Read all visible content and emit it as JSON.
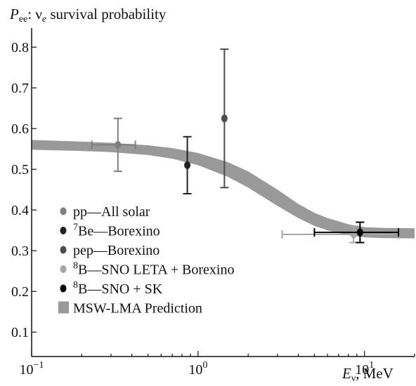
{
  "chart_data": {
    "type": "scatter",
    "title": "P_ee: ν_e survival probability",
    "title_parts": {
      "p": "P",
      "sub": "ee",
      "rest": ": ν",
      "sub2": "e",
      "tail": " survival probability"
    },
    "xlabel_parts": {
      "e": "E",
      "sub": "ν",
      "tail": ", MeV"
    },
    "x_scale": "log",
    "xlim": [
      0.1,
      20
    ],
    "ylim": [
      0.04,
      0.84
    ],
    "y_ticks": [
      0.1,
      0.2,
      0.3,
      0.4,
      0.5,
      0.6,
      0.7,
      0.8
    ],
    "y_tick_labels": [
      "0.1",
      "0.2",
      "0.3",
      "0.4",
      "0.5",
      "0.6",
      "0.7",
      "0.8"
    ],
    "x_ticks": [
      {
        "value": 0.1,
        "base": "10",
        "exp": "−1"
      },
      {
        "value": 1,
        "base": "10",
        "exp": "0"
      },
      {
        "value": 10,
        "base": "10",
        "exp": "1"
      }
    ],
    "series": [
      {
        "name": "pp—All solar",
        "name_sup": "",
        "name_text": "pp—All solar",
        "color": "#7f7f7f",
        "x": 0.33,
        "y": 0.56,
        "y_err": [
          0.495,
          0.625
        ],
        "x_err": [
          0.23,
          0.42
        ]
      },
      {
        "name": "7Be—Borexino",
        "name_sup": "7",
        "name_text": "Be—Borexino",
        "color": "#222222",
        "x": 0.862,
        "y": 0.51,
        "y_err": [
          0.44,
          0.58
        ],
        "x_err": null
      },
      {
        "name": "pep—Borexino",
        "name_sup": "",
        "name_text": "pep—Borexino",
        "color": "#4d4d4d",
        "x": 1.44,
        "y": 0.625,
        "y_err": [
          0.455,
          0.795
        ],
        "x_err": null
      },
      {
        "name": "8B—SNO LETA + Borexino",
        "name_sup": "8",
        "name_text": "B—SNO LETA + Borexino",
        "color": "#a6a6a6",
        "x": 8.6,
        "y": 0.34,
        "y_err": [
          0.32,
          0.36
        ],
        "x_err": [
          3.2,
          16
        ]
      },
      {
        "name": "8B—SNO + SK",
        "name_sup": "8",
        "name_text": "B—SNO + SK",
        "color": "#000000",
        "x": 9.4,
        "y": 0.345,
        "y_err": [
          0.32,
          0.37
        ],
        "x_err": [
          5,
          16
        ]
      }
    ],
    "band": {
      "name": "MSW-LMA Prediction",
      "color": "#999999",
      "x": [
        0.1,
        0.2,
        0.3,
        0.5,
        0.7,
        1.0,
        1.5,
        2.0,
        3.0,
        4.0,
        5.0,
        6.0,
        8.0,
        10.0,
        13.0,
        20.0
      ],
      "lower": [
        0.548,
        0.545,
        0.542,
        0.535,
        0.526,
        0.51,
        0.482,
        0.455,
        0.41,
        0.38,
        0.361,
        0.35,
        0.338,
        0.333,
        0.331,
        0.33
      ],
      "upper": [
        0.572,
        0.568,
        0.565,
        0.559,
        0.552,
        0.54,
        0.518,
        0.495,
        0.45,
        0.415,
        0.393,
        0.38,
        0.365,
        0.358,
        0.356,
        0.355
      ]
    },
    "grid": false,
    "legend_position": "bottom-left"
  }
}
